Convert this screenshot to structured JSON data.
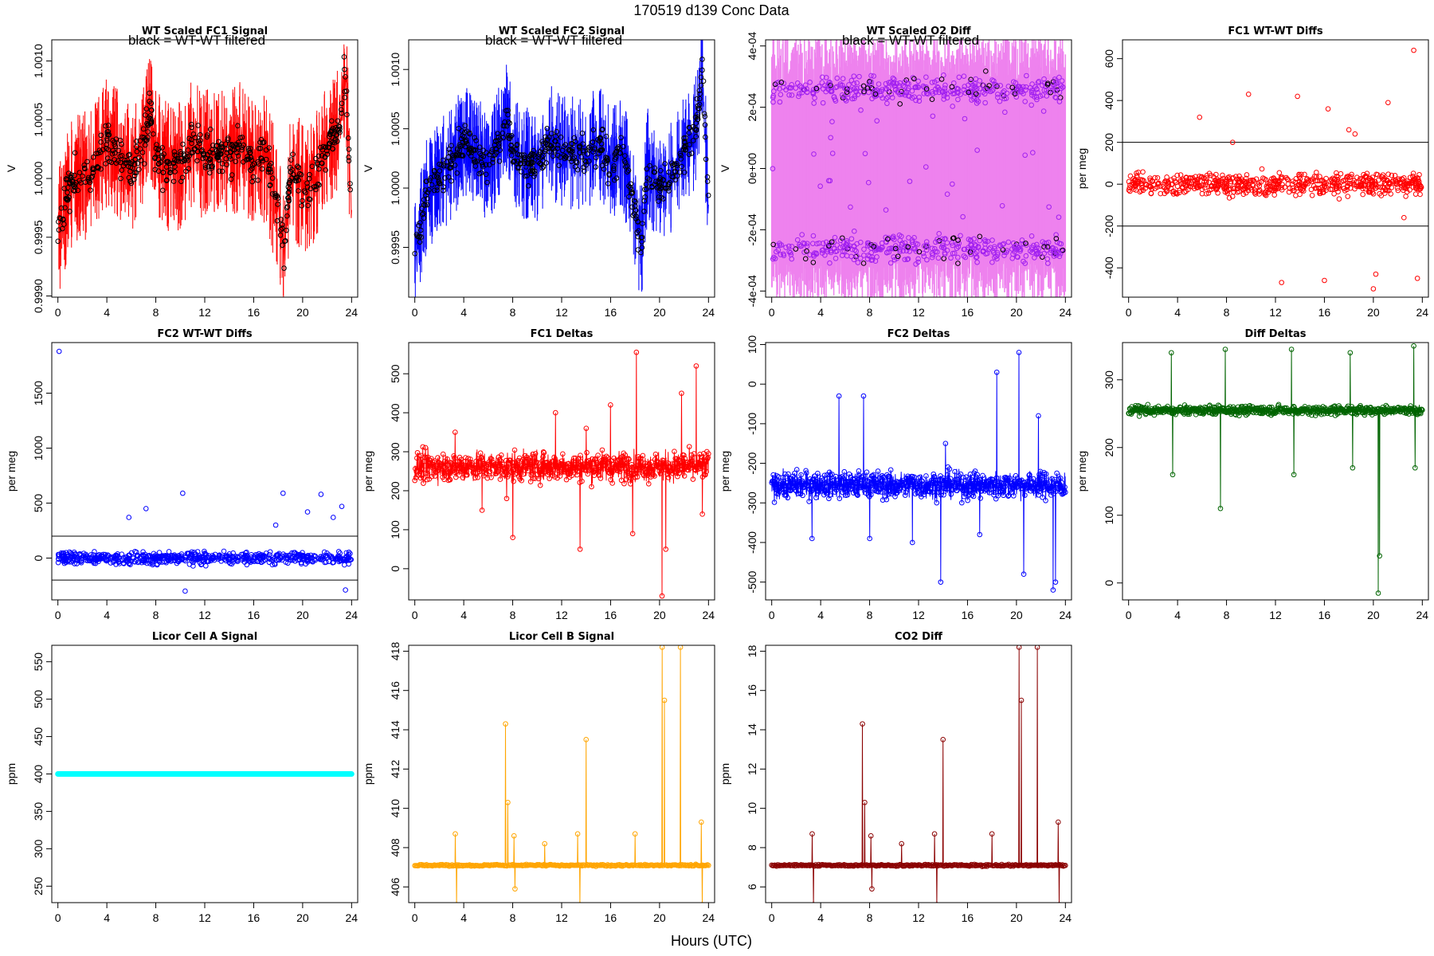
{
  "page": {
    "title": "170519   d139   Conc Data",
    "x_axis_label": "Hours (UTC)"
  },
  "chart_data": [
    {
      "id": "wt_fc1",
      "type": "line",
      "title": "WT Scaled FC1 Signal",
      "subtitle": "black = WT-WT filtered",
      "ylabel": "V",
      "ylim": [
        0.99899,
        1.00118
      ],
      "yticks": [
        0.999,
        0.9995,
        1.0,
        1.0005,
        1.001
      ],
      "ytick_labels": [
        "0.9990",
        "0.9995",
        "1.0000",
        "1.0005",
        "1.0010"
      ],
      "xlim": [
        -0.5,
        24.5
      ],
      "xticks": [
        0,
        4,
        8,
        12,
        16,
        20,
        24
      ],
      "color": "#ff0000",
      "style": "noisy",
      "base": [
        [
          0,
          0.99955
        ],
        [
          1,
          0.99995
        ],
        [
          2,
          1.0
        ],
        [
          3,
          1.0001
        ],
        [
          4,
          1.0003
        ],
        [
          5,
          1.0002
        ],
        [
          6,
          1.0001
        ],
        [
          7,
          1.0003
        ],
        [
          7.5,
          1.0006
        ],
        [
          8,
          1.0002
        ],
        [
          9,
          1.0001
        ],
        [
          10,
          1.0001
        ],
        [
          11,
          1.0003
        ],
        [
          12,
          1.0002
        ],
        [
          13,
          1.0002
        ],
        [
          14,
          1.0002
        ],
        [
          15,
          1.0003
        ],
        [
          16,
          1.0001
        ],
        [
          17,
          1.0002
        ],
        [
          18,
          0.9997
        ],
        [
          18.5,
          0.9993
        ],
        [
          19,
          1.0001
        ],
        [
          20,
          0.9999
        ],
        [
          21,
          1.0
        ],
        [
          22,
          1.0003
        ],
        [
          23,
          1.0004
        ],
        [
          23.5,
          1.0009
        ],
        [
          24,
          0.9997
        ]
      ],
      "noise": 0.00035,
      "overlay_color": "#000000"
    },
    {
      "id": "wt_fc2",
      "type": "line",
      "title": "WT Scaled FC2 Signal",
      "subtitle": "black = WT-WT filtered",
      "ylabel": "V",
      "ylim": [
        0.99908,
        1.00125
      ],
      "yticks": [
        0.9995,
        1.0,
        1.0005,
        1.001
      ],
      "ytick_labels": [
        "0.9995",
        "1.0000",
        "1.0005",
        "1.0010"
      ],
      "xlim": [
        -0.5,
        24.5
      ],
      "xticks": [
        0,
        4,
        8,
        12,
        16,
        20,
        24
      ],
      "color": "#0000ff",
      "style": "noisy",
      "base": [
        [
          0,
          0.99945
        ],
        [
          1,
          0.99995
        ],
        [
          2,
          1.0001
        ],
        [
          3,
          1.0002
        ],
        [
          4,
          1.0004
        ],
        [
          5,
          1.0003
        ],
        [
          6,
          1.0002
        ],
        [
          7,
          1.0004
        ],
        [
          7.5,
          1.0006
        ],
        [
          8,
          1.0003
        ],
        [
          9,
          1.0002
        ],
        [
          10,
          1.0002
        ],
        [
          11,
          1.0004
        ],
        [
          12,
          1.0003
        ],
        [
          13,
          1.0003
        ],
        [
          14,
          1.0003
        ],
        [
          15,
          1.0004
        ],
        [
          16,
          1.0002
        ],
        [
          17,
          1.0003
        ],
        [
          18,
          0.9998
        ],
        [
          18.5,
          0.9995
        ],
        [
          19,
          1.0002
        ],
        [
          20,
          1.0
        ],
        [
          21,
          1.0001
        ],
        [
          22,
          1.0003
        ],
        [
          23,
          1.0005
        ],
        [
          23.5,
          1.001
        ],
        [
          24,
          0.9998
        ]
      ],
      "noise": 0.0003,
      "overlay_color": "#000000"
    },
    {
      "id": "wt_o2diff",
      "type": "line",
      "title": "WT Scaled O2 Diff",
      "subtitle": "black = WT-WT filtered",
      "ylabel": "V",
      "ylim": [
        -0.00042,
        0.00042
      ],
      "yticks": [
        -0.0004,
        -0.0002,
        0.0,
        0.0002,
        0.0004
      ],
      "ytick_labels": [
        "-4e-04",
        "-2e-04",
        "0e+00",
        "2e-04",
        "4e-04"
      ],
      "xlim": [
        -0.5,
        24.5
      ],
      "xticks": [
        0,
        4,
        8,
        12,
        16,
        20,
        24
      ],
      "color": "#ee82ee",
      "point_color": "#a020f0",
      "style": "band",
      "upper_level": 0.00026,
      "lower_level": -0.00026,
      "overlay_color": "#000000"
    },
    {
      "id": "fc1_wtwt",
      "type": "scatter",
      "title": "FC1 WT-WT Diffs",
      "ylabel": "per meg",
      "ylim": [
        -540,
        690
      ],
      "yticks": [
        -400,
        -200,
        0,
        200,
        400,
        600
      ],
      "ytick_labels": [
        "-400",
        "-200",
        "0",
        "200",
        "400",
        "600"
      ],
      "xlim": [
        -0.5,
        24.5
      ],
      "xticks": [
        0,
        4,
        8,
        12,
        16,
        20,
        24
      ],
      "color": "#ff0000",
      "style": "scatter",
      "spread": 70,
      "hlines": [
        200,
        -200
      ],
      "outliers": [
        [
          5.8,
          320
        ],
        [
          8.5,
          200
        ],
        [
          9.8,
          430
        ],
        [
          12.5,
          -470
        ],
        [
          13.8,
          420
        ],
        [
          16,
          -460
        ],
        [
          16.3,
          360
        ],
        [
          18,
          260
        ],
        [
          18.5,
          240
        ],
        [
          20,
          -500
        ],
        [
          20.2,
          -430
        ],
        [
          21.2,
          390
        ],
        [
          22.5,
          -160
        ],
        [
          23.3,
          640
        ],
        [
          23.6,
          -450
        ]
      ]
    },
    {
      "id": "fc2_wtwt",
      "type": "scatter",
      "title": "FC2 WT-WT Diffs",
      "ylabel": "per meg",
      "ylim": [
        -380,
        1960
      ],
      "yticks": [
        0,
        500,
        1000,
        1500
      ],
      "ytick_labels": [
        "0",
        "500",
        "1000",
        "1500"
      ],
      "xlim": [
        -0.5,
        24.5
      ],
      "xticks": [
        0,
        4,
        8,
        12,
        16,
        20,
        24
      ],
      "color": "#0000ff",
      "style": "scatter",
      "spread": 70,
      "hlines": [
        200,
        -200
      ],
      "outliers": [
        [
          0.1,
          1880
        ],
        [
          5.8,
          370
        ],
        [
          7.2,
          450
        ],
        [
          10.2,
          590
        ],
        [
          17.8,
          300
        ],
        [
          18.4,
          590
        ],
        [
          20.4,
          420
        ],
        [
          21.5,
          580
        ],
        [
          22.5,
          370
        ],
        [
          23.2,
          470
        ],
        [
          23.5,
          -290
        ],
        [
          10.4,
          -300
        ]
      ]
    },
    {
      "id": "fc1_deltas",
      "type": "line",
      "title": "FC1 Deltas",
      "ylabel": "per meg",
      "ylim": [
        -80,
        580
      ],
      "yticks": [
        0,
        100,
        200,
        300,
        400,
        500
      ],
      "ytick_labels": [
        "0",
        "100",
        "200",
        "300",
        "400",
        "500"
      ],
      "xlim": [
        -0.5,
        24.5
      ],
      "xticks": [
        0,
        4,
        8,
        12,
        16,
        20,
        24
      ],
      "color": "#ff0000",
      "style": "points_line",
      "level": 262,
      "spread": 45,
      "spikes": [
        [
          3.3,
          350
        ],
        [
          5.5,
          150
        ],
        [
          7.5,
          180
        ],
        [
          8,
          80
        ],
        [
          11.5,
          400
        ],
        [
          13.5,
          50
        ],
        [
          14,
          360
        ],
        [
          16,
          420
        ],
        [
          17.8,
          90
        ],
        [
          18.1,
          555
        ],
        [
          20.2,
          -70
        ],
        [
          20.5,
          50
        ],
        [
          21.8,
          450
        ],
        [
          23,
          520
        ],
        [
          23.5,
          140
        ]
      ]
    },
    {
      "id": "fc2_deltas",
      "type": "line",
      "title": "FC2 Deltas",
      "ylabel": "per meg",
      "ylim": [
        -545,
        105
      ],
      "yticks": [
        -500,
        -400,
        -300,
        -200,
        -100,
        0,
        100
      ],
      "ytick_labels": [
        "-500",
        "-400",
        "-300",
        "-200",
        "-100",
        "0",
        "100"
      ],
      "xlim": [
        -0.5,
        24.5
      ],
      "xticks": [
        0,
        4,
        8,
        12,
        16,
        20,
        24
      ],
      "color": "#0000ff",
      "style": "points_line",
      "level": -255,
      "spread": 40,
      "spikes": [
        [
          3.3,
          -390
        ],
        [
          5.5,
          -30
        ],
        [
          7.5,
          -30
        ],
        [
          8,
          -390
        ],
        [
          11.5,
          -400
        ],
        [
          13.8,
          -500
        ],
        [
          14.2,
          -150
        ],
        [
          17,
          -380
        ],
        [
          18.4,
          30
        ],
        [
          20.2,
          80
        ],
        [
          20.6,
          -480
        ],
        [
          21.8,
          -80
        ],
        [
          23,
          -520
        ],
        [
          23.2,
          -500
        ]
      ]
    },
    {
      "id": "diff_deltas",
      "type": "line",
      "title": "Diff Deltas",
      "ylabel": "per meg",
      "ylim": [
        -25,
        355
      ],
      "yticks": [
        0,
        100,
        200,
        300
      ],
      "ytick_labels": [
        "0",
        "100",
        "200",
        "300"
      ],
      "xlim": [
        -0.5,
        24.5
      ],
      "xticks": [
        0,
        4,
        8,
        12,
        16,
        20,
        24
      ],
      "color": "#006400",
      "style": "points_line",
      "level": 255,
      "spread": 8,
      "spikes": [
        [
          3.5,
          340
        ],
        [
          3.6,
          160
        ],
        [
          7.5,
          110
        ],
        [
          7.9,
          345
        ],
        [
          13.3,
          345
        ],
        [
          13.5,
          160
        ],
        [
          18.1,
          340
        ],
        [
          18.3,
          170
        ],
        [
          20.4,
          -15
        ],
        [
          20.5,
          40
        ],
        [
          23.3,
          350
        ],
        [
          23.4,
          170
        ]
      ]
    },
    {
      "id": "licor_a",
      "type": "line",
      "title": "Licor Cell A Signal",
      "ylabel": "ppm",
      "ylim": [
        228,
        572
      ],
      "yticks": [
        250,
        300,
        350,
        400,
        450,
        500,
        550
      ],
      "ytick_labels": [
        "250",
        "300",
        "350",
        "400",
        "450",
        "500",
        "550"
      ],
      "xlim": [
        -0.5,
        24.5
      ],
      "xticks": [
        0,
        4,
        8,
        12,
        16,
        20,
        24
      ],
      "color": "#00ffff",
      "style": "flat",
      "level": 400
    },
    {
      "id": "licor_b",
      "type": "line",
      "title": "Licor Cell B Signal",
      "ylabel": "ppm",
      "ylim": [
        405.2,
        418.3
      ],
      "yticks": [
        406,
        408,
        410,
        412,
        414,
        416,
        418
      ],
      "ytick_labels": [
        "406",
        "408",
        "410",
        "412",
        "414",
        "416",
        "418"
      ],
      "xlim": [
        -0.5,
        24.5
      ],
      "xticks": [
        0,
        4,
        8,
        12,
        16,
        20,
        24
      ],
      "color": "#ffa500",
      "style": "baseline_spikes",
      "level": 407.1,
      "spread": 0.05,
      "spikes": [
        [
          3.3,
          408.7
        ],
        [
          3.4,
          405.1
        ],
        [
          7.4,
          414.3
        ],
        [
          7.6,
          410.3
        ],
        [
          8.1,
          408.6
        ],
        [
          8.2,
          405.9
        ],
        [
          10.6,
          408.2
        ],
        [
          13.3,
          408.7
        ],
        [
          13.5,
          405.1
        ],
        [
          14,
          413.5
        ],
        [
          18,
          408.7
        ],
        [
          20.2,
          418.2
        ],
        [
          20.4,
          415.5
        ],
        [
          21.7,
          418.2
        ],
        [
          23.4,
          409.3
        ],
        [
          23.5,
          405.1
        ]
      ]
    },
    {
      "id": "co2_diff",
      "type": "line",
      "title": "CO2 Diff",
      "ylabel": "ppm",
      "ylim": [
        5.2,
        18.3
      ],
      "yticks": [
        6,
        8,
        10,
        12,
        14,
        16,
        18
      ],
      "ytick_labels": [
        "6",
        "8",
        "10",
        "12",
        "14",
        "16",
        "18"
      ],
      "xlim": [
        -0.5,
        24.5
      ],
      "xticks": [
        0,
        4,
        8,
        12,
        16,
        20,
        24
      ],
      "color": "#8b0000",
      "style": "baseline_spikes",
      "level": 7.1,
      "spread": 0.05,
      "spikes": [
        [
          3.3,
          8.7
        ],
        [
          3.4,
          5.1
        ],
        [
          7.4,
          14.3
        ],
        [
          7.6,
          10.3
        ],
        [
          8.1,
          8.6
        ],
        [
          8.2,
          5.9
        ],
        [
          10.6,
          8.2
        ],
        [
          13.3,
          8.7
        ],
        [
          13.5,
          5.1
        ],
        [
          14,
          13.5
        ],
        [
          18,
          8.7
        ],
        [
          20.2,
          18.2
        ],
        [
          20.4,
          15.5
        ],
        [
          21.7,
          18.2
        ],
        [
          23.4,
          9.3
        ],
        [
          23.5,
          5.1
        ]
      ]
    }
  ]
}
